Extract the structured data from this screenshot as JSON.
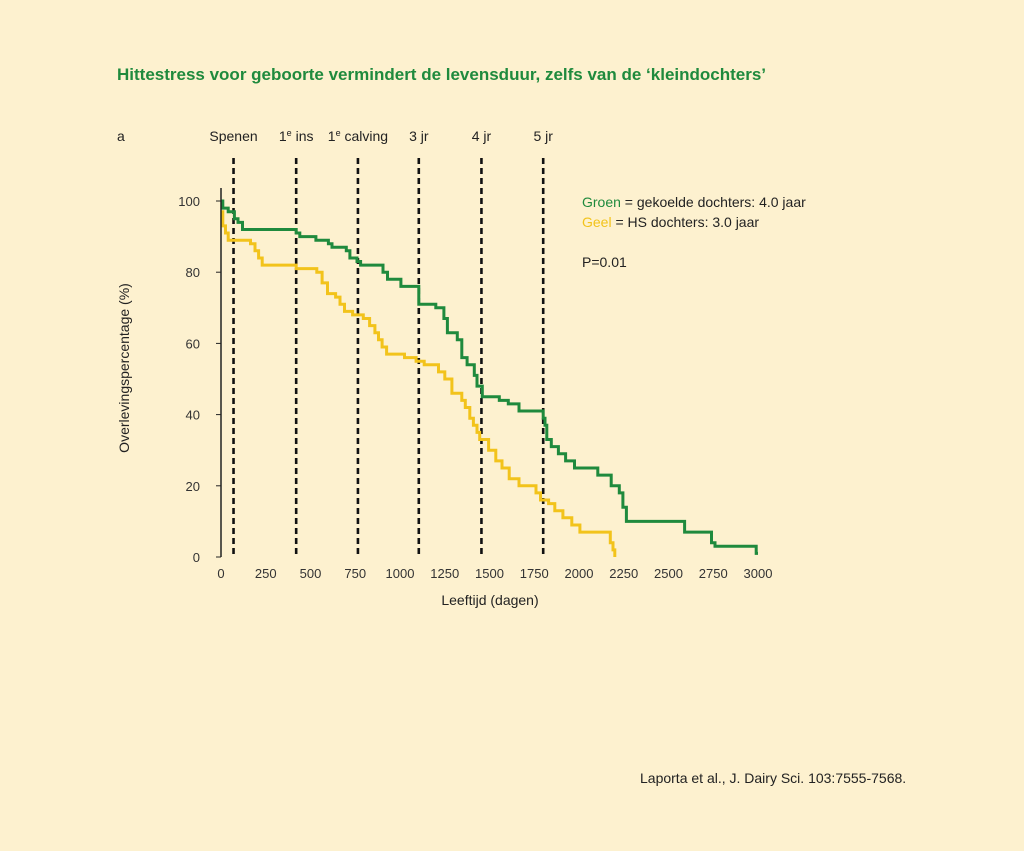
{
  "figure": {
    "title": "Hittestress voor geboorte vermindert de levensduur, zelfs van de ‘kleindochters’",
    "panel_label": "a",
    "source": "Laporta et al., J. Dairy Sci. 103:7555-7568.",
    "colors": {
      "background": "#fdf1cf",
      "title": "#1f8a3d",
      "green": "#1f8a3d",
      "yellow": "#f2c31b",
      "milestone_line": "#111111",
      "axis": "#222222"
    }
  },
  "legend": {
    "green_word": "Groen",
    "green_rest": " = gekoelde dochters: 4.0 jaar",
    "yellow_word": "Geel",
    "yellow_rest": " = HS dochters: 3.0 jaar",
    "pvalue": "P=0.01"
  },
  "chart_data": {
    "type": "line",
    "title": "Hittestress voor geboorte vermindert de levensduur, zelfs van de ‘kleindochters’",
    "xlabel": "Leeftijd (dagen)",
    "ylabel": "Overlevingspercentage (%)",
    "xlim": [
      0,
      3000
    ],
    "ylim": [
      0,
      100
    ],
    "x_ticks": [
      0,
      250,
      500,
      750,
      1000,
      1250,
      1500,
      1750,
      2000,
      2250,
      2500,
      2750,
      3000
    ],
    "y_ticks": [
      0,
      20,
      40,
      60,
      80,
      100
    ],
    "grid": false,
    "step": true,
    "milestones": [
      {
        "label_main": "Spenen",
        "label_sup": "",
        "label_rest": "",
        "x": 70
      },
      {
        "label_main": "1",
        "label_sup": "e",
        "label_rest": " ins",
        "x": 420
      },
      {
        "label_main": "1",
        "label_sup": "e",
        "label_rest": " calving",
        "x": 765
      },
      {
        "label_main": "3 jr",
        "label_sup": "",
        "label_rest": "",
        "x": 1105
      },
      {
        "label_main": "4 jr",
        "label_sup": "",
        "label_rest": "",
        "x": 1455
      },
      {
        "label_main": "5 jr",
        "label_sup": "",
        "label_rest": "",
        "x": 1800
      }
    ],
    "series": [
      {
        "name": "Groen",
        "color": "#1f8a3d",
        "points": [
          [
            0,
            100
          ],
          [
            10,
            98
          ],
          [
            40,
            97
          ],
          [
            75,
            95
          ],
          [
            95,
            94
          ],
          [
            120,
            92
          ],
          [
            420,
            91
          ],
          [
            440,
            90
          ],
          [
            530,
            89
          ],
          [
            600,
            88
          ],
          [
            620,
            87
          ],
          [
            700,
            86
          ],
          [
            720,
            84
          ],
          [
            760,
            83
          ],
          [
            780,
            82
          ],
          [
            905,
            80
          ],
          [
            930,
            78
          ],
          [
            1005,
            76
          ],
          [
            1105,
            71
          ],
          [
            1200,
            70
          ],
          [
            1245,
            67
          ],
          [
            1265,
            63
          ],
          [
            1320,
            61
          ],
          [
            1345,
            56
          ],
          [
            1375,
            54
          ],
          [
            1415,
            51
          ],
          [
            1430,
            48
          ],
          [
            1460,
            45
          ],
          [
            1555,
            44
          ],
          [
            1605,
            43
          ],
          [
            1665,
            41
          ],
          [
            1800,
            39
          ],
          [
            1810,
            37
          ],
          [
            1820,
            33
          ],
          [
            1845,
            31
          ],
          [
            1885,
            29
          ],
          [
            1925,
            27
          ],
          [
            1975,
            25
          ],
          [
            2105,
            23
          ],
          [
            2180,
            20
          ],
          [
            2225,
            18
          ],
          [
            2245,
            14
          ],
          [
            2265,
            10
          ],
          [
            2590,
            7
          ],
          [
            2740,
            4
          ],
          [
            2760,
            3
          ],
          [
            2990,
            1
          ],
          [
            3000,
            1
          ]
        ]
      },
      {
        "name": "Geel",
        "color": "#f2c31b",
        "points": [
          [
            0,
            97
          ],
          [
            10,
            93
          ],
          [
            25,
            91
          ],
          [
            40,
            89
          ],
          [
            165,
            88
          ],
          [
            190,
            86
          ],
          [
            210,
            84
          ],
          [
            230,
            82
          ],
          [
            420,
            81
          ],
          [
            535,
            80
          ],
          [
            565,
            77
          ],
          [
            595,
            74
          ],
          [
            640,
            73
          ],
          [
            665,
            71
          ],
          [
            690,
            69
          ],
          [
            735,
            68
          ],
          [
            795,
            67
          ],
          [
            830,
            65
          ],
          [
            860,
            63
          ],
          [
            880,
            61
          ],
          [
            900,
            59
          ],
          [
            925,
            57
          ],
          [
            1025,
            56
          ],
          [
            1090,
            55
          ],
          [
            1135,
            54
          ],
          [
            1215,
            52
          ],
          [
            1250,
            50
          ],
          [
            1290,
            46
          ],
          [
            1345,
            44
          ],
          [
            1365,
            42
          ],
          [
            1390,
            39
          ],
          [
            1410,
            37
          ],
          [
            1430,
            35
          ],
          [
            1445,
            33
          ],
          [
            1495,
            30
          ],
          [
            1535,
            27
          ],
          [
            1570,
            25
          ],
          [
            1610,
            22
          ],
          [
            1665,
            20
          ],
          [
            1760,
            18
          ],
          [
            1785,
            16
          ],
          [
            1830,
            15
          ],
          [
            1865,
            13
          ],
          [
            1910,
            11
          ],
          [
            1960,
            9
          ],
          [
            2005,
            7
          ],
          [
            2175,
            4
          ],
          [
            2190,
            2
          ],
          [
            2200,
            0
          ]
        ]
      }
    ]
  }
}
